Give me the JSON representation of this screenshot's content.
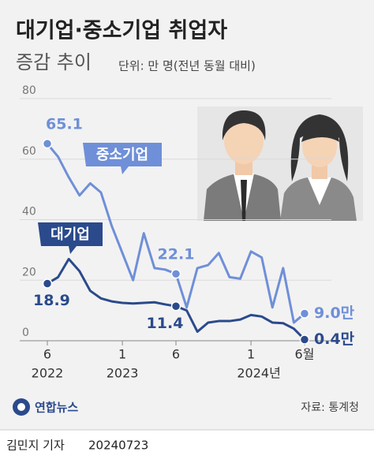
{
  "chart_data": {
    "type": "line",
    "title": "대기업·중소기업 취업자",
    "subtitle": "증감 추이",
    "unit": "단위: 만 명(전년 동월 대비)",
    "categories": [
      "6",
      null,
      null,
      null,
      null,
      null,
      null,
      "1",
      null,
      null,
      null,
      null,
      "6",
      null,
      null,
      null,
      null,
      null,
      null,
      "1",
      null,
      null,
      null,
      null,
      "6월"
    ],
    "year_labels": [
      "2022",
      null,
      null,
      null,
      null,
      null,
      null,
      "2023",
      null,
      null,
      null,
      null,
      null,
      null,
      null,
      null,
      null,
      null,
      null,
      "2024년",
      null,
      null,
      null,
      null,
      null
    ],
    "ylim": [
      0,
      80
    ],
    "yticks": [
      0,
      20,
      40,
      60,
      80
    ],
    "series": [
      {
        "name": "중소기업",
        "color": "#6f8fd8",
        "values": [
          65.1,
          60.8,
          54,
          48,
          52,
          49,
          38,
          29,
          20,
          35.5,
          24,
          23.5,
          22.1,
          11,
          24,
          25,
          29,
          21,
          20.5,
          29.5,
          27.5,
          11,
          24,
          6,
          9.0
        ],
        "value_labels": [
          "65.1",
          null,
          null,
          null,
          null,
          null,
          null,
          null,
          null,
          null,
          null,
          null,
          "22.1",
          null,
          null,
          null,
          null,
          null,
          null,
          null,
          null,
          null,
          null,
          null,
          "9.0만"
        ]
      },
      {
        "name": "대기업",
        "color": "#2b4a8c",
        "values": [
          18.9,
          21,
          27,
          23,
          16.5,
          14,
          13,
          12.5,
          12.3,
          12.5,
          12.7,
          12,
          11.4,
          10,
          3,
          6,
          6.5,
          6.5,
          7,
          8.5,
          8,
          6,
          5.8,
          4,
          0.4
        ],
        "value_labels": [
          "18.9",
          null,
          null,
          null,
          null,
          null,
          null,
          null,
          null,
          null,
          null,
          null,
          "11.4",
          null,
          null,
          null,
          null,
          null,
          null,
          null,
          null,
          null,
          null,
          null,
          "0.4만"
        ]
      }
    ]
  },
  "footer": {
    "logo": "연합뉴스",
    "source": "자료: 통계청",
    "credit": "김민지 기자",
    "date": "20240723"
  }
}
